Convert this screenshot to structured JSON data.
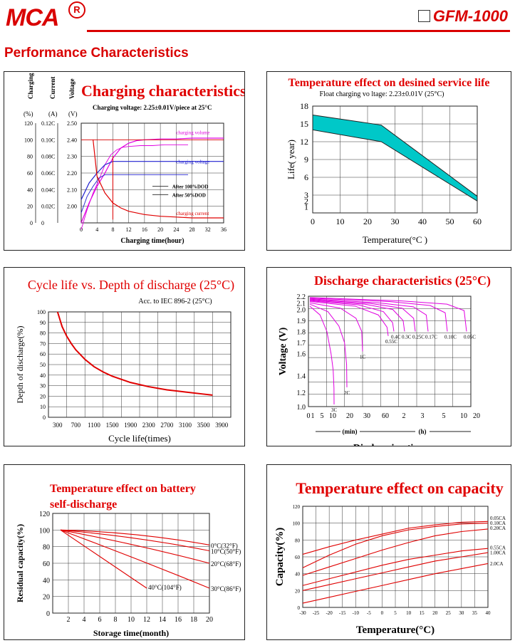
{
  "header": {
    "logo": "MCA",
    "reg": "R",
    "model": "GFM-1000",
    "section": "Performance Characteristics"
  },
  "colors": {
    "red": "#e00000",
    "magenta": "#e000e0",
    "blue": "#2020d0",
    "cyan": "#00c8c8",
    "brand": "#d90000"
  },
  "chart_data": [
    {
      "type": "line",
      "title": "Charging characteristics",
      "subtitle": "Charging voltage:  2.25±0.01V/piece at 25°C",
      "axis_labels": [
        "Charging Volume",
        "Current",
        "Voltage"
      ],
      "axis_units": [
        "(%)",
        "(A)",
        "(V)"
      ],
      "xlabel": "Charging time(hour)",
      "x_ticks": [
        "0",
        "4",
        "8",
        "12",
        "16",
        "20",
        "24",
        "28",
        "32",
        "36"
      ],
      "y_ticks_volume": [
        "0",
        "20",
        "40",
        "60",
        "80",
        "100",
        "120"
      ],
      "y_ticks_current": [
        "0",
        "0.02C",
        "0.04C",
        "0.06C",
        "0.08C",
        "0.10C",
        "0.12C"
      ],
      "y_ticks_voltage": [
        "2.00",
        "2.10",
        "2.20",
        "2.30",
        "2.40",
        "2.50"
      ],
      "legend": [
        "After 100%DOD",
        "After 50%DOD"
      ],
      "series_labels": [
        "charging volume",
        "charging voltage",
        "charging current"
      ],
      "xlim": [
        0,
        36
      ],
      "ylim_voltage": [
        1.9,
        2.5
      ],
      "series": [
        {
          "name": "charging volume",
          "axis": "voltage",
          "x": [
            0,
            2,
            4,
            6,
            8,
            10,
            12,
            14,
            16,
            20,
            24,
            28,
            32,
            36
          ],
          "values": [
            1.9,
            2.02,
            2.12,
            2.2,
            2.29,
            2.35,
            2.38,
            2.395,
            2.4,
            2.405,
            2.405,
            2.41,
            2.41,
            2.41
          ]
        },
        {
          "name": "charging voltage",
          "axis": "voltage",
          "x": [
            0,
            2,
            4,
            6,
            8,
            12,
            20,
            28,
            36
          ],
          "values": [
            2.04,
            2.14,
            2.2,
            2.25,
            2.27,
            2.27,
            2.27,
            2.27,
            2.27
          ]
        },
        {
          "name": "charging current",
          "axis": "voltage",
          "x": [
            3,
            4,
            6,
            8,
            10,
            12,
            16,
            20,
            24,
            28,
            32,
            36
          ],
          "values": [
            2.4,
            2.18,
            2.08,
            2.02,
            1.99,
            1.97,
            1.95,
            1.94,
            1.935,
            1.93,
            1.93,
            1.93
          ]
        }
      ]
    },
    {
      "type": "area",
      "title": "Temperature effect on desined service life",
      "subtitle": "Float charging vo  ltage:  2.23±0.01V  (25°C)",
      "xlabel": "Temperature(°C )",
      "ylabel": "Life( year)",
      "x_ticks": [
        "0",
        "10",
        "20",
        "30",
        "40",
        "50",
        "60"
      ],
      "y_ticks": [
        "1",
        "2",
        "3",
        "6",
        "9",
        "12",
        "15",
        "18"
      ],
      "xlim": [
        0,
        60
      ],
      "ylim": [
        0,
        18
      ],
      "upper": {
        "x": [
          0,
          25,
          60
        ],
        "values": [
          16.5,
          14.8,
          2.8
        ]
      },
      "lower": {
        "x": [
          0,
          25,
          60
        ],
        "values": [
          14,
          12,
          2
        ]
      }
    },
    {
      "type": "line",
      "title": "Cycle life vs. Depth of discharge (25°C)",
      "subtitle": "Acc. to IEC 896-2 (25°C)",
      "xlabel": "Cycle life(times)",
      "ylabel": "Depth of discharge(%)",
      "x_ticks": [
        "300",
        "700",
        "1100",
        "1500",
        "1900",
        "2300",
        "2700",
        "3100",
        "3500",
        "3900"
      ],
      "y_ticks": [
        "0",
        "10",
        "20",
        "30",
        "40",
        "50",
        "60",
        "70",
        "80",
        "90",
        "100"
      ],
      "xlim": [
        100,
        4100
      ],
      "ylim": [
        0,
        100
      ],
      "series": [
        {
          "x": [
            300,
            400,
            500,
            600,
            700,
            900,
            1100,
            1300,
            1500,
            1900,
            2300,
            2700,
            3100,
            3500,
            3700
          ],
          "values": [
            100,
            86,
            77,
            70,
            64,
            55,
            48,
            43,
            39,
            33,
            29,
            26,
            24,
            22,
            21
          ]
        }
      ]
    },
    {
      "type": "line",
      "title": "Discharge characteristics (25°C)",
      "xlabel": "Discharging time",
      "ylabel": "Voltage (V)",
      "x_ticks": [
        "0",
        "1",
        "5",
        "10",
        "20",
        "30",
        "60",
        "2",
        "3",
        "5",
        "10",
        "20"
      ],
      "x_units": [
        "(min)",
        "(h)"
      ],
      "y_ticks": [
        "1.0",
        "1.2",
        "1.4",
        "1.6",
        "1.7",
        "1.8",
        "1.9",
        "2.0",
        "2.1",
        "2.2"
      ],
      "series": [
        {
          "name": "3C",
          "values": [
            2.05,
            1.95,
            1.8,
            1.6,
            1.45,
            1.25,
            1.03
          ]
        },
        {
          "name": "2C",
          "values": [
            2.08,
            1.98,
            1.85,
            1.7,
            1.5,
            1.26
          ]
        },
        {
          "name": "1C",
          "values": [
            2.1,
            2.02,
            1.92,
            1.8,
            1.62
          ]
        },
        {
          "name": "0.55C",
          "values": [
            2.12,
            2.05,
            1.95,
            1.84,
            1.76
          ]
        },
        {
          "name": "0.4C",
          "values": [
            2.13,
            2.07,
            1.98,
            1.88,
            1.8
          ]
        },
        {
          "name": "0.3C",
          "values": [
            2.14,
            2.08,
            2.0,
            1.9,
            1.8
          ]
        },
        {
          "name": "0.25C",
          "values": [
            2.15,
            2.09,
            2.02,
            1.92,
            1.8
          ]
        },
        {
          "name": "0.17C",
          "values": [
            2.16,
            2.1,
            2.04,
            1.95,
            1.8
          ]
        },
        {
          "name": "0.10C",
          "values": [
            2.17,
            2.12,
            2.06,
            1.97,
            1.8
          ]
        },
        {
          "name": "0.05C",
          "values": [
            2.18,
            2.13,
            2.08,
            1.99,
            1.8
          ]
        }
      ]
    },
    {
      "type": "line",
      "title": "Temperature effect on battery self-discharge",
      "xlabel": "Storage time(month)",
      "ylabel": "Residual capacity(%)",
      "x_ticks": [
        "2",
        "4",
        "6",
        "8",
        "10",
        "12",
        "14",
        "16",
        "18",
        "20"
      ],
      "y_ticks": [
        "0",
        "20",
        "40",
        "60",
        "80",
        "100",
        "120"
      ],
      "xlim": [
        0,
        20
      ],
      "ylim": [
        0,
        120
      ],
      "series": [
        {
          "name": "0°C(32°F)",
          "x": [
            1,
            20
          ],
          "values": [
            100,
            82
          ]
        },
        {
          "name": "10°C(50°F)",
          "x": [
            1,
            20
          ],
          "values": [
            100,
            75
          ]
        },
        {
          "name": "20°C(68°F)",
          "x": [
            1,
            20
          ],
          "values": [
            100,
            60
          ]
        },
        {
          "name": "30°C(86°F)",
          "x": [
            1,
            20
          ],
          "values": [
            100,
            30
          ]
        },
        {
          "name": "40°C(104°F)",
          "x": [
            1,
            12
          ],
          "values": [
            100,
            30
          ]
        }
      ]
    },
    {
      "type": "line",
      "title": "Temperature effect on capacity",
      "xlabel": "Temperature(°C)",
      "ylabel": "Capacity(%)",
      "x_ticks": [
        "-30",
        "-25",
        "-20",
        "-15",
        "-10",
        "-5",
        "0",
        "5",
        "10",
        "15",
        "20",
        "25",
        "30",
        "35",
        "40"
      ],
      "y_ticks": [
        "0",
        "20",
        "40",
        "60",
        "80",
        "100",
        "120"
      ],
      "xlim": [
        -30,
        40
      ],
      "ylim": [
        0,
        120
      ],
      "series": [
        {
          "name": "0.05CA",
          "x": [
            -30,
            -20,
            -10,
            0,
            10,
            20,
            30,
            40
          ],
          "values": [
            63,
            72,
            80,
            87,
            94,
            98,
            101,
            102
          ]
        },
        {
          "name": "0.10CA",
          "x": [
            -30,
            -20,
            -10,
            0,
            10,
            20,
            30,
            40
          ],
          "values": [
            47,
            62,
            75,
            85,
            92,
            96,
            99,
            100
          ]
        },
        {
          "name": "0.20CA",
          "x": [
            -30,
            -20,
            -10,
            0,
            10,
            20,
            30,
            40
          ],
          "values": [
            38,
            48,
            58,
            68,
            77,
            85,
            90,
            93
          ]
        },
        {
          "name": "0.55CA",
          "x": [
            -30,
            -20,
            -10,
            0,
            10,
            20,
            30,
            40
          ],
          "values": [
            26,
            34,
            42,
            50,
            57,
            62,
            67,
            70
          ]
        },
        {
          "name": "1.00CA",
          "x": [
            -30,
            -20,
            -10,
            0,
            10,
            20,
            30,
            40
          ],
          "values": [
            20,
            27,
            34,
            41,
            48,
            55,
            60,
            65
          ]
        },
        {
          "name": "2.0CA",
          "x": [
            -30,
            -20,
            -10,
            0,
            10,
            20,
            30,
            40
          ],
          "values": [
            5,
            12,
            19,
            26,
            33,
            40,
            46,
            52
          ]
        }
      ]
    }
  ]
}
